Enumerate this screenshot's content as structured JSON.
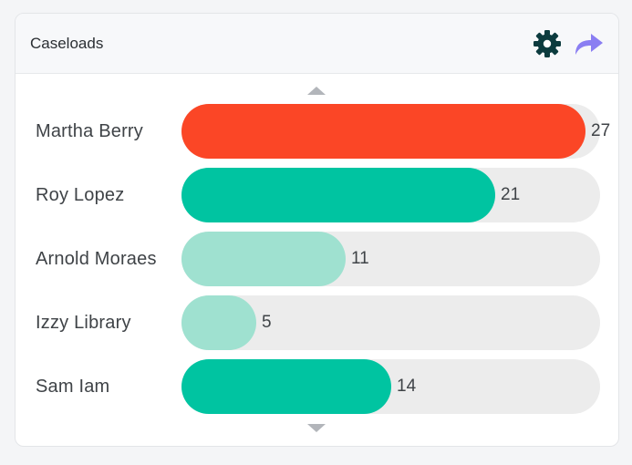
{
  "widget": {
    "title": "Caseloads"
  },
  "icons": {
    "settings": "gear-icon",
    "share": "share-arrow-icon",
    "scroll_up": "caret-up-icon",
    "scroll_down": "caret-down-icon"
  },
  "colors": {
    "high": "#fb4626",
    "medium": "#00c4a1",
    "low": "#9fe1d0",
    "track": "#ececec",
    "settings_icon": "#0c3b3e",
    "share_icon": "#8a7ef2"
  },
  "chart_data": {
    "type": "bar",
    "orientation": "horizontal",
    "max": 28,
    "categories": [
      "Martha Berry",
      "Roy Lopez",
      "Arnold Moraes",
      "Izzy Library",
      "Sam Iam"
    ],
    "values": [
      27,
      21,
      11,
      5,
      14
    ],
    "levels": [
      "high",
      "medium",
      "low",
      "low",
      "medium"
    ]
  }
}
